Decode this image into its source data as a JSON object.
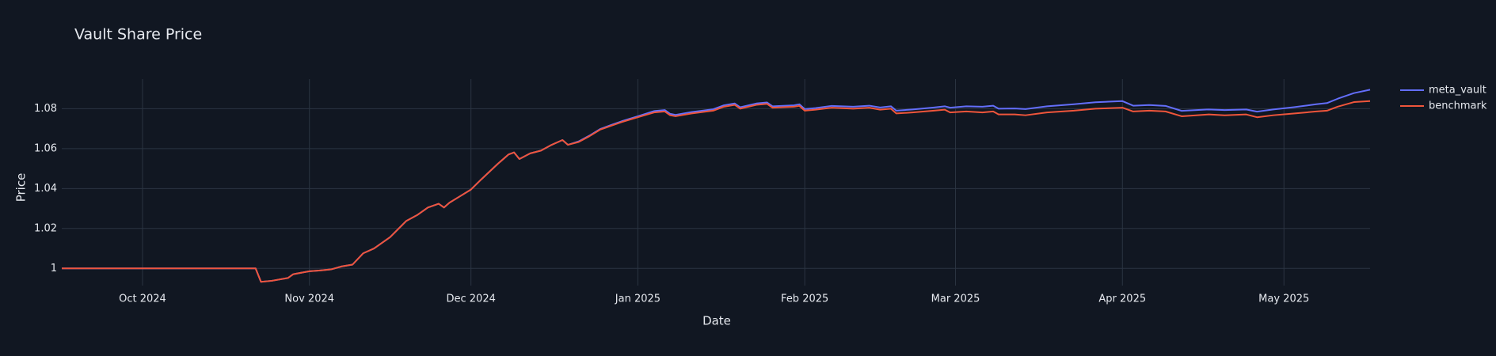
{
  "chart_data": {
    "type": "line",
    "title": "Vault Share Price",
    "x_label": "Date",
    "y_label": "Price",
    "x": [
      "2024-09-16",
      "2024-10-22",
      "2024-10-23",
      "2024-10-25",
      "2024-10-28",
      "2024-10-29",
      "2024-11-01",
      "2024-11-03",
      "2024-11-05",
      "2024-11-07",
      "2024-11-09",
      "2024-11-11",
      "2024-11-13",
      "2024-11-16",
      "2024-11-19",
      "2024-11-21",
      "2024-11-23",
      "2024-11-25",
      "2024-11-26",
      "2024-11-27",
      "2024-11-29",
      "2024-12-01",
      "2024-12-03",
      "2024-12-06",
      "2024-12-08",
      "2024-12-09",
      "2024-12-10",
      "2024-12-12",
      "2024-12-14",
      "2024-12-16",
      "2024-12-18",
      "2024-12-19",
      "2024-12-21",
      "2024-12-23",
      "2024-12-25",
      "2024-12-27",
      "2024-12-29",
      "2025-01-01",
      "2025-01-04",
      "2025-01-06",
      "2025-01-07",
      "2025-01-08",
      "2025-01-11",
      "2025-01-15",
      "2025-01-17",
      "2025-01-19",
      "2025-01-20",
      "2025-01-23",
      "2025-01-25",
      "2025-01-26",
      "2025-01-30",
      "2025-01-31",
      "2025-02-01",
      "2025-02-03",
      "2025-02-06",
      "2025-02-10",
      "2025-02-13",
      "2025-02-15",
      "2025-02-17",
      "2025-02-18",
      "2025-02-21",
      "2025-02-25",
      "2025-02-27",
      "2025-02-28",
      "2025-03-03",
      "2025-03-06",
      "2025-03-08",
      "2025-03-09",
      "2025-03-12",
      "2025-03-14",
      "2025-03-18",
      "2025-03-23",
      "2025-03-27",
      "2025-04-01",
      "2025-04-03",
      "2025-04-06",
      "2025-04-09",
      "2025-04-12",
      "2025-04-17",
      "2025-04-20",
      "2025-04-24",
      "2025-04-26",
      "2025-04-29",
      "2025-05-03",
      "2025-05-07",
      "2025-05-09",
      "2025-05-11",
      "2025-05-14",
      "2025-05-17"
    ],
    "series": [
      {
        "name": "meta_vault",
        "color": "#636efa",
        "values": [
          1.0,
          1.0,
          0.9933,
          0.9938,
          0.9952,
          0.9971,
          0.9986,
          0.999,
          0.9995,
          1.001,
          1.0019,
          1.0076,
          1.01,
          1.0157,
          1.0238,
          1.0267,
          1.0305,
          1.0324,
          1.0305,
          1.0329,
          1.0362,
          1.0395,
          1.0448,
          1.0524,
          1.0571,
          1.0581,
          1.0548,
          1.0576,
          1.059,
          1.0619,
          1.0643,
          1.0619,
          1.0636,
          1.0665,
          1.0698,
          1.0718,
          1.0737,
          1.0762,
          1.0788,
          1.0793,
          1.0774,
          1.0769,
          1.0783,
          1.0797,
          1.0817,
          1.0826,
          1.0807,
          1.0826,
          1.0831,
          1.0812,
          1.0817,
          1.0822,
          1.0798,
          1.0803,
          1.0814,
          1.081,
          1.0815,
          1.0806,
          1.0812,
          1.079,
          1.0796,
          1.0806,
          1.0812,
          1.0805,
          1.0812,
          1.081,
          1.0815,
          1.08,
          1.0801,
          1.0798,
          1.0812,
          1.0822,
          1.0832,
          1.0838,
          1.0815,
          1.0818,
          1.0814,
          1.0789,
          1.0796,
          1.0793,
          1.0796,
          1.0785,
          1.0796,
          1.0808,
          1.0822,
          1.0828,
          1.085,
          1.0878,
          1.0895
        ]
      },
      {
        "name": "benchmark",
        "color": "#ef553b",
        "values": [
          1.0,
          1.0,
          0.9933,
          0.9938,
          0.9952,
          0.9971,
          0.9986,
          0.999,
          0.9995,
          1.001,
          1.0019,
          1.0076,
          1.01,
          1.0157,
          1.0238,
          1.0267,
          1.0305,
          1.0324,
          1.0305,
          1.0329,
          1.0362,
          1.0395,
          1.0448,
          1.0524,
          1.0571,
          1.0581,
          1.0548,
          1.0576,
          1.059,
          1.0619,
          1.0643,
          1.0619,
          1.0633,
          1.0662,
          1.0695,
          1.0714,
          1.0733,
          1.0757,
          1.0781,
          1.0786,
          1.0767,
          1.0762,
          1.0776,
          1.079,
          1.081,
          1.0819,
          1.08,
          1.0819,
          1.0824,
          1.0805,
          1.081,
          1.0814,
          1.079,
          1.0795,
          1.0805,
          1.08,
          1.0805,
          1.0795,
          1.08,
          1.0776,
          1.0781,
          1.079,
          1.0795,
          1.0781,
          1.0786,
          1.0781,
          1.0786,
          1.0771,
          1.0771,
          1.0767,
          1.0781,
          1.079,
          1.08,
          1.0805,
          1.0786,
          1.079,
          1.0786,
          1.0762,
          1.0771,
          1.0767,
          1.0771,
          1.0757,
          1.0767,
          1.0776,
          1.0786,
          1.079,
          1.081,
          1.0833,
          1.0838
        ]
      }
    ],
    "xlim": [
      "2024-09-16",
      "2025-05-17"
    ],
    "xticks": [
      {
        "value": "2024-10-01",
        "label": "Oct 2024"
      },
      {
        "value": "2024-11-01",
        "label": "Nov 2024"
      },
      {
        "value": "2024-12-01",
        "label": "Dec 2024"
      },
      {
        "value": "2025-01-01",
        "label": "Jan 2025"
      },
      {
        "value": "2025-02-01",
        "label": "Feb 2025"
      },
      {
        "value": "2025-03-01",
        "label": "Mar 2025"
      },
      {
        "value": "2025-04-01",
        "label": "Apr 2025"
      },
      {
        "value": "2025-05-01",
        "label": "May 2025"
      }
    ],
    "ylim": [
      0.9914,
      1.0948
    ],
    "yticks": [
      1,
      1.02,
      1.04,
      1.06,
      1.08
    ],
    "grid": true,
    "legend": "right"
  }
}
